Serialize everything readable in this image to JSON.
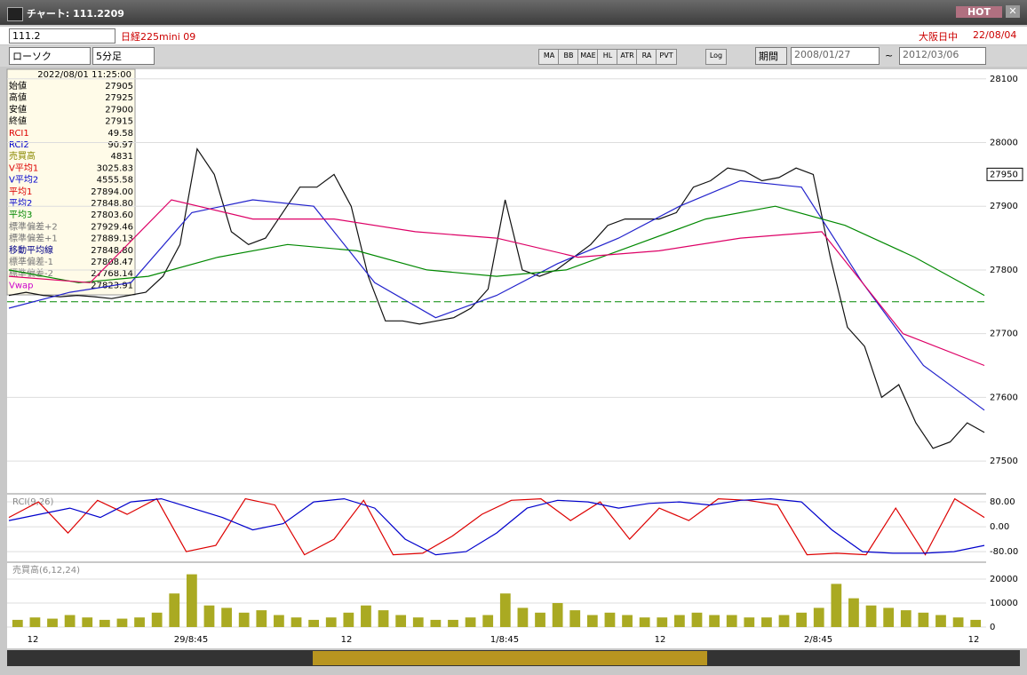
{
  "window": {
    "title": "チャート: 111.2209",
    "hot": "HOT"
  },
  "toolbar": {
    "symbol": "111.2",
    "name": "日経225mini 09",
    "market": "大阪日中",
    "date": "22/08/04",
    "chart_type": "ローソク",
    "interval": "5分足",
    "icons": [
      "MA",
      "BB",
      "MAE",
      "HL",
      "ATR",
      "RA",
      "PVT",
      "Log"
    ],
    "period": "期間",
    "from": "2008/01/27",
    "tilde": "~",
    "to": "2012/03/06"
  },
  "info": {
    "datetime": "2022/08/01 11:25:00",
    "rows": [
      {
        "label": "始値",
        "value": "27905",
        "color": "#000"
      },
      {
        "label": "高値",
        "value": "27925",
        "color": "#000"
      },
      {
        "label": "安値",
        "value": "27900",
        "color": "#000"
      },
      {
        "label": "終値",
        "value": "27915",
        "color": "#000"
      },
      {
        "label": "RCI1",
        "value": "49.58",
        "color": "#d00"
      },
      {
        "label": "RCI2",
        "value": "90.97",
        "color": "#00c"
      },
      {
        "label": "売買高",
        "value": "4831",
        "color": "#880"
      },
      {
        "label": "V平均1",
        "value": "3025.83",
        "color": "#d00"
      },
      {
        "label": "V平均2",
        "value": "4555.58",
        "color": "#00c"
      },
      {
        "label": "平均1",
        "value": "27894.00",
        "color": "#d00"
      },
      {
        "label": "平均2",
        "value": "27848.80",
        "color": "#00c"
      },
      {
        "label": "平均3",
        "value": "27803.60",
        "color": "#080"
      },
      {
        "label": "標準偏差+2",
        "value": "27929.46",
        "color": "#777"
      },
      {
        "label": "標準偏差+1",
        "value": "27889.13",
        "color": "#777"
      },
      {
        "label": "移動平均線",
        "value": "27848.80",
        "color": "#008"
      },
      {
        "label": "標準偏差-1",
        "value": "27808.47",
        "color": "#777"
      },
      {
        "label": "標準偏差-2",
        "value": "27768.14",
        "color": "#777"
      },
      {
        "label": "Vwap",
        "value": "27823.91",
        "color": "#c0c"
      }
    ]
  },
  "time_axis": [
    "12",
    "29/8:45",
    "12",
    "1/8:45",
    "12",
    "2/8:45",
    "12"
  ],
  "chart_data": [
    {
      "type": "line",
      "ylim": [
        27450,
        28115
      ],
      "yticks": [
        27500,
        27600,
        27700,
        27800,
        27900,
        28000,
        28100
      ],
      "grid": true,
      "last_price": 27950,
      "reference_line": 27750,
      "series": [
        {
          "color": "#111",
          "values": [
            27760,
            27765,
            27760,
            27758,
            27760,
            27758,
            27755,
            27760,
            27765,
            27790,
            27840,
            27990,
            27950,
            27860,
            27840,
            27850,
            27890,
            27930,
            27930,
            27950,
            27900,
            27790,
            27720,
            27720,
            27715,
            27720,
            27725,
            27740,
            27770,
            27910,
            27800,
            27790,
            27800,
            27820,
            27840,
            27870,
            27880,
            27880,
            27880,
            27890,
            27930,
            27940,
            27960,
            27955,
            27940,
            27945,
            27960,
            27950,
            27820,
            27710,
            27680,
            27600,
            27620,
            27560,
            27520,
            27530,
            27560,
            27545
          ]
        },
        {
          "color": "#22c",
          "values": [
            27740,
            27765,
            27780,
            27890,
            27910,
            27900,
            27780,
            27725,
            27760,
            27810,
            27850,
            27900,
            27940,
            27930,
            27780,
            27650,
            27580
          ]
        },
        {
          "color": "#080",
          "values": [
            27800,
            27780,
            27790,
            27820,
            27840,
            27830,
            27800,
            27790,
            27800,
            27840,
            27880,
            27900,
            27870,
            27820,
            27760
          ]
        },
        {
          "color": "#d06",
          "values": [
            27790,
            27780,
            27910,
            27880,
            27880,
            27860,
            27850,
            27820,
            27830,
            27850,
            27860,
            27700,
            27650
          ]
        }
      ]
    },
    {
      "type": "line",
      "label": "RCI(9,26)",
      "ylim": [
        -111,
        103
      ],
      "yticks": [
        {
          "value": 80,
          "label": "80.00"
        },
        {
          "value": 0,
          "label": "0.00"
        },
        {
          "value": -80,
          "label": "-80.00"
        }
      ],
      "series": [
        {
          "color": "#d00",
          "values": [
            30,
            80,
            -20,
            85,
            40,
            90,
            -80,
            -60,
            90,
            70,
            -90,
            -40,
            85,
            -90,
            -85,
            -30,
            40,
            85,
            90,
            20,
            80,
            -40,
            60,
            20,
            90,
            85,
            70,
            -90,
            -85,
            -90,
            60,
            -90,
            90,
            30
          ]
        },
        {
          "color": "#00c",
          "values": [
            20,
            40,
            60,
            30,
            80,
            90,
            60,
            30,
            -10,
            10,
            80,
            90,
            60,
            -40,
            -90,
            -80,
            -20,
            60,
            85,
            80,
            60,
            75,
            80,
            70,
            85,
            90,
            80,
            -10,
            -80,
            -85,
            -85,
            -80,
            -60
          ]
        }
      ]
    },
    {
      "type": "bar",
      "label": "売買高(6,12,24)",
      "ylim": [
        -1480,
        26670
      ],
      "yticks": [
        0,
        10000,
        20000
      ],
      "color": "#aa2",
      "values": [
        3000,
        4000,
        3500,
        5000,
        4000,
        3000,
        3500,
        4000,
        6000,
        14000,
        22000,
        9000,
        8000,
        6000,
        7000,
        5000,
        4000,
        3000,
        4000,
        6000,
        9000,
        7000,
        5000,
        4000,
        3000,
        3000,
        4000,
        5000,
        14000,
        8000,
        6000,
        10000,
        7000,
        5000,
        6000,
        5000,
        4000,
        4000,
        5000,
        6000,
        5000,
        5000,
        4000,
        4000,
        5000,
        6000,
        8000,
        18000,
        12000,
        9000,
        8000,
        7000,
        6000,
        5000,
        4000,
        3000
      ]
    }
  ]
}
